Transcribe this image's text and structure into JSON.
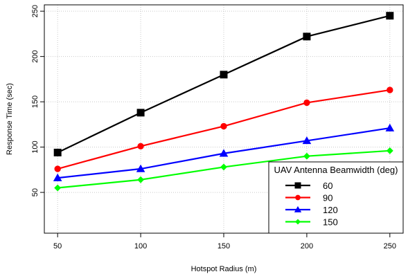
{
  "chart_data": {
    "type": "line",
    "xlabel": "Hotspot Radius (m)",
    "ylabel": "Response Time (sec)",
    "x": [
      50,
      100,
      150,
      200,
      250
    ],
    "xticks": [
      "50",
      "100",
      "150",
      "200",
      "250"
    ],
    "yticks": [
      "50",
      "100",
      "150",
      "200",
      "250"
    ],
    "xlim": [
      42,
      258
    ],
    "ylim": [
      5,
      257
    ],
    "grid": true,
    "legend": {
      "title": "UAV Antenna Beamwidth (deg)",
      "placement": "bottom-right"
    },
    "series": [
      {
        "name": "60",
        "color": "#000000",
        "marker": "square",
        "values": [
          94,
          138,
          180,
          222,
          245
        ]
      },
      {
        "name": "90",
        "color": "#ff0000",
        "marker": "circle",
        "values": [
          76,
          101,
          123,
          149,
          163
        ]
      },
      {
        "name": "120",
        "color": "#0000ff",
        "marker": "triangle",
        "values": [
          66,
          76,
          93,
          107,
          121
        ]
      },
      {
        "name": "150",
        "color": "#00ff00",
        "marker": "diamond",
        "values": [
          55,
          64,
          78,
          90,
          96
        ]
      }
    ]
  }
}
